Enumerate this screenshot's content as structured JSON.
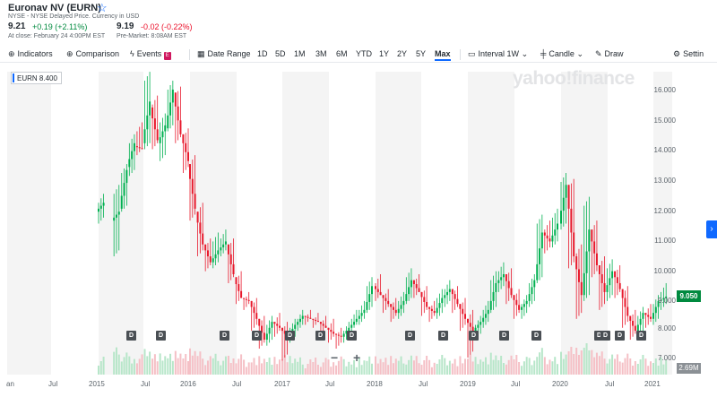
{
  "quote": {
    "title": "Euronav NV (EURN)",
    "star_icon": "star-outline-icon",
    "exchange": "NYSE - NYSE Delayed Price. Currency in USD",
    "close_price": "9.21",
    "close_change": "+0.19 (+2.11%)",
    "close_note": "At close: February 24 4:00PM EST",
    "pre_price": "9.19",
    "pre_change": "-0.02 (-0.22%)",
    "pre_note": "Pre-Market: 8:08AM EST"
  },
  "toolbar": {
    "indicators": "Indicators",
    "comparison": "Comparison",
    "events": "Events",
    "date_range": "Date Range",
    "ranges": [
      "1D",
      "5D",
      "1M",
      "3M",
      "6M",
      "YTD",
      "1Y",
      "2Y",
      "5Y",
      "Max"
    ],
    "selected_range": "Max",
    "interval": "Interval",
    "interval_value": "1W",
    "chart_type": "Candle",
    "draw": "Draw",
    "settings": "Settin"
  },
  "chart": {
    "legend": "EURN 8.400",
    "watermark": "yahoo!finance",
    "y_ticks": [
      "16.000",
      "15.000",
      "14.000",
      "13.000",
      "12.000",
      "11.000",
      "10.000",
      "9.000",
      "8.000",
      "7.000"
    ],
    "price_tag": "9.050",
    "volume_tag": "2.69M",
    "x_ticks": [
      "an",
      "Jul",
      "2015",
      "Jul",
      "2016",
      "Jul",
      "2017",
      "Jul",
      "2018",
      "Jul",
      "2019",
      "Jul",
      "2020",
      "Jul",
      "2021"
    ],
    "dividend_label": "D",
    "zoom_out": "−",
    "zoom_in": "+",
    "expand_icon": "chevron-right-icon",
    "colors": {
      "up": "#00b050",
      "down": "#e8192c",
      "accent": "#0f69ff",
      "band": "#f4f4f4"
    }
  },
  "chart_data": {
    "type": "candlestick",
    "ticker": "EURN",
    "interval": "1W",
    "ylim": [
      7.0,
      16.5
    ],
    "x_ticks": [
      "2015",
      "2016",
      "2017",
      "2018",
      "2019",
      "2020",
      "2021"
    ],
    "points": [
      {
        "x": "2015-01",
        "o": 11.9,
        "c": 12.2,
        "h": 12.5,
        "l": 11.5
      },
      {
        "x": "2015-03",
        "o": 11.6,
        "c": 11.9,
        "h": 12.8,
        "l": 10.4
      },
      {
        "x": "2015-04",
        "o": 12.0,
        "c": 13.3,
        "h": 13.5,
        "l": 11.9
      },
      {
        "x": "2015-05",
        "o": 13.4,
        "c": 14.2,
        "h": 14.5,
        "l": 13.1
      },
      {
        "x": "2015-06",
        "o": 14.1,
        "c": 14.0,
        "h": 14.9,
        "l": 13.8
      },
      {
        "x": "2015-07",
        "o": 14.2,
        "c": 15.6,
        "h": 16.6,
        "l": 14.0
      },
      {
        "x": "2015-08",
        "o": 15.4,
        "c": 14.3,
        "h": 15.8,
        "l": 14.0
      },
      {
        "x": "2015-09",
        "o": 14.2,
        "c": 14.8,
        "h": 15.2,
        "l": 13.6
      },
      {
        "x": "2015-10",
        "o": 14.7,
        "c": 16.0,
        "h": 16.3,
        "l": 14.6
      },
      {
        "x": "2015-11",
        "o": 15.9,
        "c": 14.5,
        "h": 16.1,
        "l": 14.2
      },
      {
        "x": "2015-12",
        "o": 14.5,
        "c": 13.6,
        "h": 14.7,
        "l": 13.2
      },
      {
        "x": "2016-01",
        "o": 13.5,
        "c": 12.0,
        "h": 13.8,
        "l": 11.6
      },
      {
        "x": "2016-02",
        "o": 11.9,
        "c": 10.8,
        "h": 12.2,
        "l": 10.4
      },
      {
        "x": "2016-03",
        "o": 10.8,
        "c": 10.2,
        "h": 11.0,
        "l": 9.9
      },
      {
        "x": "2016-04",
        "o": 10.2,
        "c": 10.6,
        "h": 11.2,
        "l": 10.0
      },
      {
        "x": "2016-05",
        "o": 10.6,
        "c": 10.9,
        "h": 11.3,
        "l": 10.4
      },
      {
        "x": "2016-06",
        "o": 10.8,
        "c": 9.8,
        "h": 11.0,
        "l": 9.5
      },
      {
        "x": "2016-07",
        "o": 9.7,
        "c": 9.0,
        "h": 9.9,
        "l": 8.8
      },
      {
        "x": "2016-08",
        "o": 9.0,
        "c": 8.9,
        "h": 9.2,
        "l": 8.6
      },
      {
        "x": "2016-09",
        "o": 8.9,
        "c": 8.3,
        "h": 9.0,
        "l": 7.9
      },
      {
        "x": "2016-10",
        "o": 8.3,
        "c": 7.6,
        "h": 8.4,
        "l": 7.3
      },
      {
        "x": "2016-11",
        "o": 7.6,
        "c": 8.2,
        "h": 8.4,
        "l": 7.4
      },
      {
        "x": "2016-12",
        "o": 8.2,
        "c": 8.0,
        "h": 8.5,
        "l": 7.7
      },
      {
        "x": "2017-01",
        "o": 8.0,
        "c": 7.7,
        "h": 8.2,
        "l": 6.9
      },
      {
        "x": "2017-02",
        "o": 7.7,
        "c": 8.1,
        "h": 8.3,
        "l": 7.5
      },
      {
        "x": "2017-03",
        "o": 8.1,
        "c": 8.4,
        "h": 8.6,
        "l": 7.9
      },
      {
        "x": "2017-04",
        "o": 8.4,
        "c": 8.3,
        "h": 8.6,
        "l": 8.1
      },
      {
        "x": "2017-05",
        "o": 8.3,
        "c": 8.2,
        "h": 8.5,
        "l": 8.0
      },
      {
        "x": "2017-06",
        "o": 8.2,
        "c": 8.0,
        "h": 8.4,
        "l": 7.8
      },
      {
        "x": "2017-07",
        "o": 8.0,
        "c": 7.8,
        "h": 8.3,
        "l": 7.5
      },
      {
        "x": "2017-08",
        "o": 7.8,
        "c": 7.7,
        "h": 8.0,
        "l": 7.3
      },
      {
        "x": "2017-09",
        "o": 7.7,
        "c": 8.0,
        "h": 8.2,
        "l": 7.5
      },
      {
        "x": "2017-10",
        "o": 8.0,
        "c": 8.3,
        "h": 8.6,
        "l": 7.9
      },
      {
        "x": "2017-11",
        "o": 8.3,
        "c": 8.6,
        "h": 8.9,
        "l": 8.1
      },
      {
        "x": "2017-12",
        "o": 8.6,
        "c": 9.4,
        "h": 9.7,
        "l": 8.5
      },
      {
        "x": "2018-01",
        "o": 9.4,
        "c": 9.1,
        "h": 9.8,
        "l": 8.9
      },
      {
        "x": "2018-02",
        "o": 9.1,
        "c": 8.8,
        "h": 9.3,
        "l": 8.5
      },
      {
        "x": "2018-03",
        "o": 8.8,
        "c": 8.5,
        "h": 9.0,
        "l": 8.2
      },
      {
        "x": "2018-04",
        "o": 8.5,
        "c": 8.9,
        "h": 9.2,
        "l": 8.3
      },
      {
        "x": "2018-05",
        "o": 8.9,
        "c": 9.6,
        "h": 10.0,
        "l": 8.8
      },
      {
        "x": "2018-06",
        "o": 9.6,
        "c": 9.2,
        "h": 9.8,
        "l": 9.0
      },
      {
        "x": "2018-07",
        "o": 9.2,
        "c": 8.7,
        "h": 9.4,
        "l": 8.4
      },
      {
        "x": "2018-08",
        "o": 8.7,
        "c": 8.5,
        "h": 8.9,
        "l": 8.2
      },
      {
        "x": "2018-09",
        "o": 8.5,
        "c": 9.0,
        "h": 9.3,
        "l": 8.3
      },
      {
        "x": "2018-10",
        "o": 9.0,
        "c": 9.3,
        "h": 9.6,
        "l": 8.7
      },
      {
        "x": "2018-11",
        "o": 9.3,
        "c": 8.8,
        "h": 9.4,
        "l": 8.5
      },
      {
        "x": "2018-12",
        "o": 8.8,
        "c": 8.3,
        "h": 9.0,
        "l": 7.9
      },
      {
        "x": "2019-01",
        "o": 8.3,
        "c": 7.9,
        "h": 8.6,
        "l": 7.0
      },
      {
        "x": "2019-02",
        "o": 7.9,
        "c": 8.2,
        "h": 8.4,
        "l": 7.6
      },
      {
        "x": "2019-03",
        "o": 8.2,
        "c": 8.6,
        "h": 8.9,
        "l": 8.0
      },
      {
        "x": "2019-04",
        "o": 8.6,
        "c": 9.5,
        "h": 9.9,
        "l": 8.5
      },
      {
        "x": "2019-05",
        "o": 9.5,
        "c": 9.8,
        "h": 10.2,
        "l": 9.2
      },
      {
        "x": "2019-06",
        "o": 9.8,
        "c": 9.1,
        "h": 10.0,
        "l": 8.8
      },
      {
        "x": "2019-07",
        "o": 9.1,
        "c": 8.6,
        "h": 9.3,
        "l": 8.3
      },
      {
        "x": "2019-08",
        "o": 8.6,
        "c": 8.9,
        "h": 9.1,
        "l": 8.3
      },
      {
        "x": "2019-09",
        "o": 8.9,
        "c": 9.6,
        "h": 9.8,
        "l": 8.7
      },
      {
        "x": "2019-10",
        "o": 9.6,
        "c": 11.2,
        "h": 11.8,
        "l": 9.5
      },
      {
        "x": "2019-11",
        "o": 11.2,
        "c": 10.9,
        "h": 11.6,
        "l": 10.5
      },
      {
        "x": "2019-12",
        "o": 10.9,
        "c": 11.5,
        "h": 12.0,
        "l": 10.7
      },
      {
        "x": "2020-01",
        "o": 11.5,
        "c": 12.8,
        "h": 13.2,
        "l": 11.3
      },
      {
        "x": "2020-02",
        "o": 12.8,
        "c": 10.4,
        "h": 13.0,
        "l": 10.0
      },
      {
        "x": "2020-03",
        "o": 10.4,
        "c": 9.1,
        "h": 10.8,
        "l": 8.3
      },
      {
        "x": "2020-04",
        "o": 9.1,
        "c": 11.3,
        "h": 12.4,
        "l": 8.9
      },
      {
        "x": "2020-05",
        "o": 11.3,
        "c": 10.1,
        "h": 11.6,
        "l": 9.7
      },
      {
        "x": "2020-06",
        "o": 10.1,
        "c": 9.2,
        "h": 10.4,
        "l": 8.6
      },
      {
        "x": "2020-07",
        "o": 9.2,
        "c": 9.9,
        "h": 10.3,
        "l": 8.9
      },
      {
        "x": "2020-08",
        "o": 9.9,
        "c": 9.3,
        "h": 10.1,
        "l": 9.0
      },
      {
        "x": "2020-09",
        "o": 9.3,
        "c": 8.4,
        "h": 9.4,
        "l": 8.0
      },
      {
        "x": "2020-10",
        "o": 8.4,
        "c": 7.9,
        "h": 8.6,
        "l": 7.6
      },
      {
        "x": "2020-11",
        "o": 7.9,
        "c": 8.5,
        "h": 8.7,
        "l": 7.7
      },
      {
        "x": "2020-12",
        "o": 8.5,
        "c": 8.3,
        "h": 8.8,
        "l": 8.0
      },
      {
        "x": "2021-01",
        "o": 8.3,
        "c": 8.9,
        "h": 9.1,
        "l": 8.1
      },
      {
        "x": "2021-02",
        "o": 8.9,
        "c": 9.05,
        "h": 9.5,
        "l": 8.6
      }
    ]
  }
}
